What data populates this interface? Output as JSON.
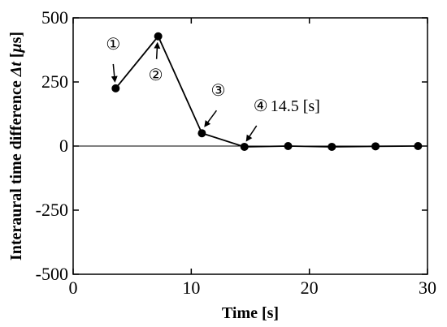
{
  "chart_data": {
    "type": "line",
    "title": "",
    "xlabel": "Time [s]",
    "ylabel_parts": [
      "Interaural time difference ",
      "Δt",
      " [",
      "μ",
      "s]"
    ],
    "xlim": [
      0,
      30
    ],
    "ylim": [
      -500,
      500
    ],
    "x_ticks": [
      0,
      10,
      20,
      30
    ],
    "y_ticks": [
      -500,
      -250,
      0,
      250,
      500
    ],
    "x_tick_labels": [
      "0",
      "10",
      "20",
      "30"
    ],
    "y_tick_labels": [
      "-500",
      "-250",
      "0",
      "250",
      "500"
    ],
    "zero_line": true,
    "grid": false,
    "series": [
      {
        "x": [
          3.6,
          7.2,
          10.9,
          14.5,
          18.2,
          21.9,
          25.6,
          29.2
        ],
        "y": [
          225,
          428,
          50,
          -3,
          0,
          -3,
          -1,
          0
        ]
      }
    ],
    "annotations": [
      {
        "symbol": "①",
        "text": "",
        "point_index": 0
      },
      {
        "symbol": "②",
        "text": "",
        "point_index": 1
      },
      {
        "symbol": "③",
        "text": "",
        "point_index": 2
      },
      {
        "symbol": "④",
        "text": "14.5 [s]",
        "point_index": 3
      }
    ]
  }
}
